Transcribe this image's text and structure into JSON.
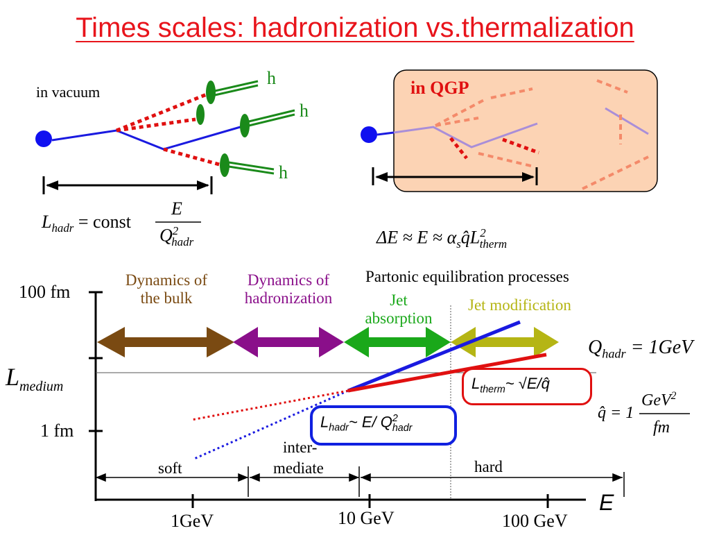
{
  "title": "Times scales: hadronization vs.thermalization",
  "vacuum": {
    "label": "in vacuum",
    "hadron": "h",
    "formula_lhs": "L",
    "formula_lhs_sub": "hadr",
    "formula_eq": "= const",
    "formula_num": "E",
    "formula_den": "Q",
    "formula_den_sup": "2",
    "formula_den_sub": "hadr"
  },
  "qgp": {
    "label": "in QGP",
    "formula": "ΔE ≈ E ≈ α",
    "formula_sub_s": "s",
    "formula_mid": "q̂L",
    "formula_sup": "2",
    "formula_sub": "therm"
  },
  "chart": {
    "y_ticks": [
      "100 fm",
      "1 fm"
    ],
    "y_label_main": "L",
    "y_label_sub": "medium",
    "x_ticks": [
      "1GeV",
      "10 GeV",
      "100 GeV"
    ],
    "x_label": "E",
    "regions": [
      {
        "line1": "Dynamics of",
        "line2": "the bulk",
        "color": "#7a4a12"
      },
      {
        "line1": "Dynamics of",
        "line2": "hadronization",
        "color": "#8a0f8a"
      },
      {
        "line1": "Jet",
        "line2": "absorption",
        "color": "#1aa81a"
      },
      {
        "line1": "Jet modification",
        "line2": "",
        "color": "#b5b514"
      }
    ],
    "partonic": "Partonic equilibration processes",
    "energy_ranges": [
      "soft",
      "inter-",
      "mediate",
      "hard"
    ],
    "l_therm": {
      "main": "L",
      "sub": "therm",
      "rest": "~ √E/q̂",
      "color": "#e01010"
    },
    "l_hadr": {
      "main": "L",
      "sub": "hadr",
      "rest": "~  E/ Q",
      "sup": "2",
      "sub2": "hadr",
      "color": "#1020e0"
    },
    "q_hadr": {
      "lhs": "Q",
      "sub": "hadr",
      "rhs": "= 1GeV"
    },
    "qhat": {
      "lhs": "q̂ = 1",
      "num": "GeV",
      "num_sup": "2",
      "den": "fm"
    }
  }
}
